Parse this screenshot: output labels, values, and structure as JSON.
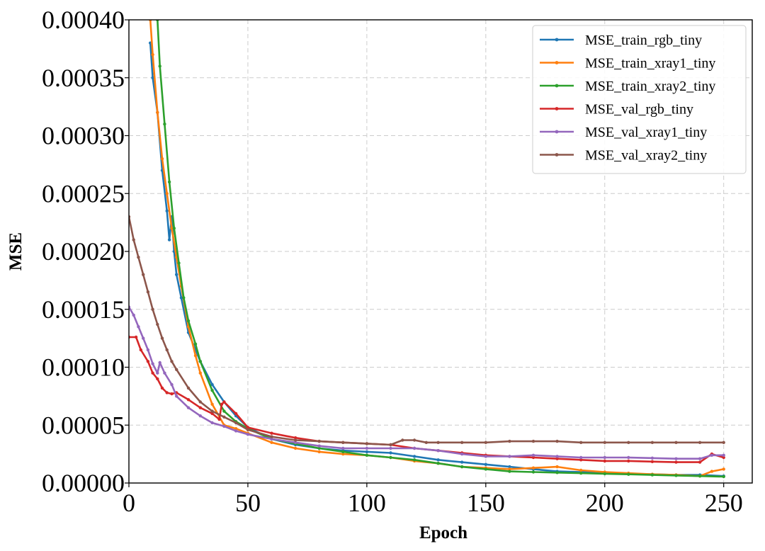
{
  "chart_data": {
    "type": "line",
    "title": "",
    "xlabel": "Epoch",
    "ylabel": "MSE",
    "xlim": [
      0,
      262
    ],
    "ylim": [
      0,
      0.0004
    ],
    "xticks": [
      0,
      50,
      100,
      150,
      200,
      250
    ],
    "xtick_labels": [
      "0",
      "50",
      "100",
      "150",
      "200",
      "250"
    ],
    "yticks": [
      0,
      5e-05,
      0.0001,
      0.00015,
      0.0002,
      0.00025,
      0.0003,
      0.00035,
      0.0004
    ],
    "ytick_labels": [
      "0.00000",
      "0.00005",
      "0.00010",
      "0.00015",
      "0.00020",
      "0.00025",
      "0.00030",
      "0.00035",
      "0.00040"
    ],
    "grid": true,
    "legend_position": "top-right",
    "series": [
      {
        "name": "MSE_train_rgb_tiny",
        "color": "#1f77b4",
        "x": [
          9,
          10,
          12,
          14,
          16,
          17,
          18,
          19,
          20,
          22,
          25,
          30,
          35,
          40,
          45,
          50,
          60,
          70,
          80,
          90,
          100,
          110,
          120,
          130,
          140,
          150,
          160,
          170,
          180,
          190,
          200,
          210,
          220,
          230,
          240,
          250
        ],
        "values": [
          0.00038,
          0.00035,
          0.00032,
          0.00027,
          0.000235,
          0.00021,
          0.00023,
          0.0002,
          0.00018,
          0.00016,
          0.00013,
          0.000105,
          8.5e-05,
          7e-05,
          5.8e-05,
          4.8e-05,
          3.8e-05,
          3.3e-05,
          3e-05,
          2.8e-05,
          2.7e-05,
          2.6e-05,
          2.3e-05,
          2e-05,
          1.8e-05,
          1.6e-05,
          1.4e-05,
          1.2e-05,
          1e-05,
          9.5e-06,
          9e-06,
          8e-06,
          7.5e-06,
          7e-06,
          7e-06,
          6e-06
        ]
      },
      {
        "name": "MSE_train_xray1_tiny",
        "color": "#ff7f0e",
        "x": [
          9,
          10,
          12,
          14,
          16,
          18,
          20,
          22,
          25,
          28,
          30,
          35,
          40,
          45,
          50,
          60,
          70,
          80,
          90,
          100,
          110,
          120,
          130,
          140,
          150,
          160,
          170,
          180,
          190,
          200,
          210,
          220,
          230,
          240,
          245,
          250
        ],
        "values": [
          0.0004,
          0.00037,
          0.00032,
          0.00028,
          0.00025,
          0.00022,
          0.000195,
          0.00017,
          0.000135,
          0.00011,
          9.5e-05,
          6.8e-05,
          5e-05,
          4.7e-05,
          4.3e-05,
          3.5e-05,
          3e-05,
          2.7e-05,
          2.5e-05,
          2.4e-05,
          2.2e-05,
          1.9e-05,
          1.7e-05,
          1.4e-05,
          1.3e-05,
          1.2e-05,
          1.3e-05,
          1.4e-05,
          1.1e-05,
          9.5e-06,
          8.5e-06,
          7.5e-06,
          7e-06,
          6e-06,
          1e-05,
          1.2e-05
        ]
      },
      {
        "name": "MSE_train_xray2_tiny",
        "color": "#2ca02c",
        "x": [
          12,
          13,
          15,
          17,
          19,
          21,
          23,
          25,
          28,
          30,
          35,
          40,
          45,
          50,
          60,
          70,
          80,
          90,
          100,
          110,
          120,
          130,
          140,
          150,
          160,
          170,
          180,
          190,
          200,
          210,
          220,
          230,
          240,
          250
        ],
        "values": [
          0.0004,
          0.00036,
          0.00031,
          0.00026,
          0.00022,
          0.00019,
          0.00016,
          0.00014,
          0.00012,
          0.000105,
          8e-05,
          6.2e-05,
          5.3e-05,
          4.7e-05,
          3.8e-05,
          3.4e-05,
          3e-05,
          2.7e-05,
          2.4e-05,
          2.2e-05,
          2e-05,
          1.7e-05,
          1.4e-05,
          1.2e-05,
          1e-05,
          9.5e-06,
          9e-06,
          8.5e-06,
          8e-06,
          7.5e-06,
          7e-06,
          6.5e-06,
          6e-06,
          5.5e-06
        ]
      },
      {
        "name": "MSE_val_rgb_tiny",
        "color": "#d62728",
        "x": [
          0,
          3,
          5,
          8,
          10,
          12,
          14,
          16,
          18,
          20,
          25,
          30,
          35,
          38,
          39,
          40,
          45,
          50,
          60,
          70,
          80,
          90,
          100,
          110,
          120,
          130,
          140,
          150,
          160,
          170,
          180,
          190,
          200,
          210,
          220,
          230,
          240,
          245,
          250
        ],
        "values": [
          0.000126,
          0.000126,
          0.000115,
          0.000105,
          9.5e-05,
          9e-05,
          8.2e-05,
          7.8e-05,
          7.7e-05,
          7.8e-05,
          7.2e-05,
          6.5e-05,
          6e-05,
          5.5e-05,
          6.8e-05,
          7e-05,
          6e-05,
          4.8e-05,
          4.3e-05,
          3.9e-05,
          3.6e-05,
          3.5e-05,
          3.4e-05,
          3.3e-05,
          3e-05,
          2.8e-05,
          2.6e-05,
          2.4e-05,
          2.3e-05,
          2.2e-05,
          2.1e-05,
          2e-05,
          1.9e-05,
          1.9e-05,
          1.85e-05,
          1.8e-05,
          1.8e-05,
          2.5e-05,
          2.2e-05
        ]
      },
      {
        "name": "MSE_val_xray1_tiny",
        "color": "#9467bd",
        "x": [
          0,
          2,
          4,
          6,
          8,
          10,
          12,
          13,
          15,
          18,
          20,
          25,
          30,
          35,
          40,
          45,
          50,
          60,
          70,
          80,
          90,
          100,
          110,
          120,
          130,
          140,
          150,
          160,
          170,
          180,
          190,
          200,
          210,
          220,
          230,
          240,
          245,
          250
        ],
        "values": [
          0.000152,
          0.000145,
          0.000135,
          0.000125,
          0.000115,
          0.000103,
          9.5e-05,
          0.000104,
          9.5e-05,
          8.5e-05,
          7.5e-05,
          6.5e-05,
          5.8e-05,
          5.2e-05,
          4.9e-05,
          4.5e-05,
          4.2e-05,
          3.8e-05,
          3.5e-05,
          3.2e-05,
          3e-05,
          3e-05,
          3e-05,
          3e-05,
          2.8e-05,
          2.5e-05,
          2.3e-05,
          2.3e-05,
          2.4e-05,
          2.3e-05,
          2.2e-05,
          2.2e-05,
          2.2e-05,
          2.15e-05,
          2.1e-05,
          2.1e-05,
          2.4e-05,
          2.4e-05
        ]
      },
      {
        "name": "MSE_val_xray2_tiny",
        "color": "#8c564b",
        "x": [
          0,
          2,
          4,
          6,
          8,
          10,
          12,
          14,
          16,
          18,
          20,
          25,
          30,
          35,
          40,
          45,
          50,
          60,
          70,
          80,
          90,
          100,
          110,
          115,
          120,
          125,
          130,
          140,
          150,
          160,
          170,
          180,
          190,
          200,
          210,
          220,
          230,
          240,
          250
        ],
        "values": [
          0.00023,
          0.00021,
          0.000195,
          0.00018,
          0.000165,
          0.00015,
          0.000137,
          0.000125,
          0.000115,
          0.000105,
          9.8e-05,
          8.2e-05,
          7e-05,
          6.2e-05,
          5.7e-05,
          5.2e-05,
          4.6e-05,
          4e-05,
          3.7e-05,
          3.6e-05,
          3.5e-05,
          3.4e-05,
          3.3e-05,
          3.7e-05,
          3.7e-05,
          3.5e-05,
          3.5e-05,
          3.5e-05,
          3.5e-05,
          3.6e-05,
          3.6e-05,
          3.6e-05,
          3.5e-05,
          3.5e-05,
          3.5e-05,
          3.5e-05,
          3.5e-05,
          3.5e-05,
          3.5e-05
        ]
      }
    ]
  }
}
